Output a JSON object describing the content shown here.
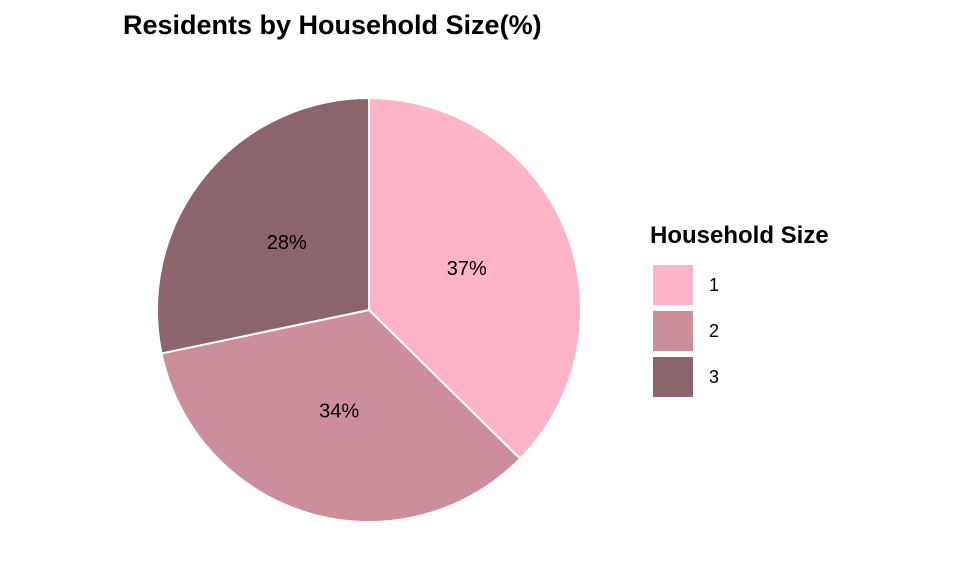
{
  "chart_data": {
    "type": "pie",
    "title": "Residents by Household Size(%)",
    "legend_title": "Household Size",
    "legend_position": "right",
    "slices": [
      {
        "name": "1",
        "value": 37,
        "label": "37%",
        "color": "#FFB3C6"
      },
      {
        "name": "2",
        "value": 34,
        "label": "34%",
        "color": "#CC8E9A"
      },
      {
        "name": "3",
        "value": 28,
        "label": "28%",
        "color": "#8C646C"
      }
    ]
  }
}
